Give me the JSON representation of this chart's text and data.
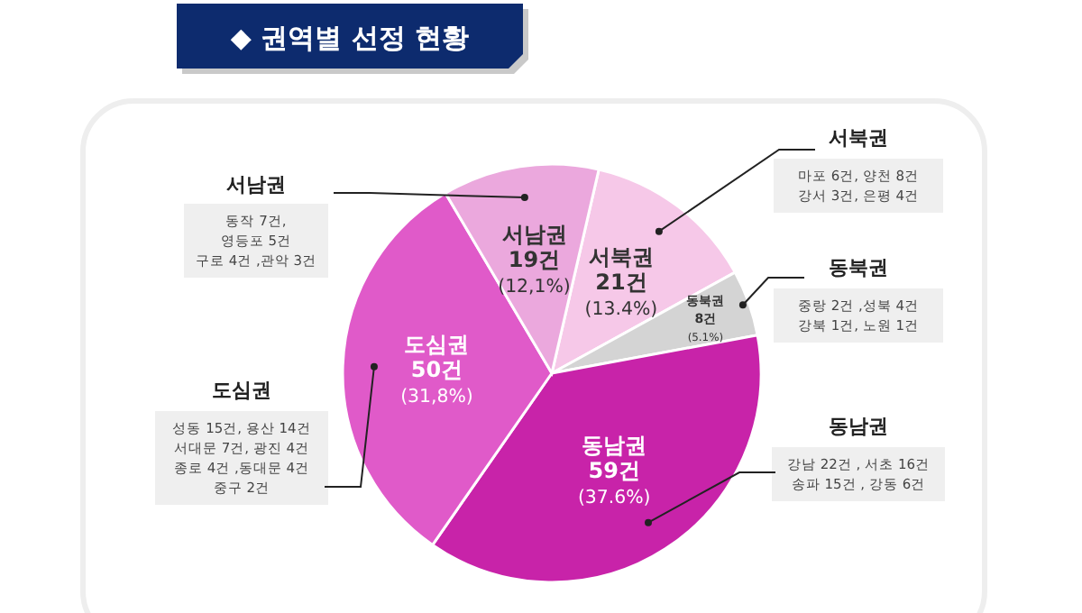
{
  "chart_data": {
    "type": "pie",
    "title": "◆ 권역별 선정 현황",
    "categories": [
      "서북권",
      "동북권",
      "동남권",
      "도심권",
      "서남권"
    ],
    "values": [
      21,
      8,
      59,
      50,
      19
    ],
    "colors": [
      "#f6c8e8",
      "#d4d4d4",
      "#c823a9",
      "#e05ac9",
      "#eba8dd"
    ],
    "value_labels": [
      "21건\n(13.4%)",
      "8건\n(5.1%)",
      "59건\n(37.6%)",
      "50건\n(31,8%)",
      "19건\n(12,1%)"
    ],
    "annotations": [
      "서북권\n마포 6건, 양천 8건\n강서 3건, 은평 4건",
      "동북권\n중랑 2건 ,성북 4건\n강북 1건, 노원 1건",
      "동남권\n강남 22건 , 서초 16건\n송파 15건 , 강동 6건",
      "도심권\n성동 15건, 용산 14건\n서대문 7건, 광진 4건\n종로 4건 ,동대문 4건\n중구 2건",
      "서남권\n동작 7건,\n영등포 5건\n구로 4건 ,관악 3건"
    ]
  }
}
